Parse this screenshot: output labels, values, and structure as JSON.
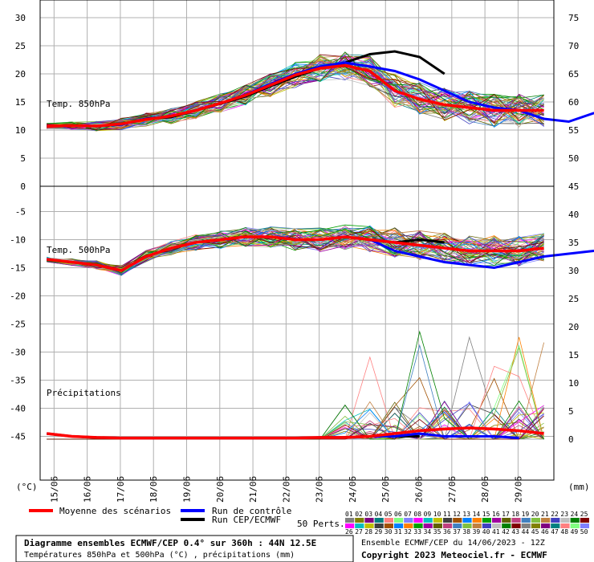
{
  "chart_data": {
    "type": "line",
    "dates": [
      "15/06",
      "16/06",
      "17/06",
      "18/06",
      "19/06",
      "20/06",
      "21/06",
      "22/06",
      "23/06",
      "24/06",
      "25/06",
      "26/06",
      "27/06",
      "28/06",
      "29/06"
    ],
    "left_axis": {
      "unit": "(°C)",
      "t850_ticks": [
        30,
        25,
        20,
        15,
        10,
        5,
        0
      ],
      "t500_ticks": [
        -5,
        -10,
        -15,
        -20,
        -25,
        -30,
        -35,
        -40,
        -45
      ]
    },
    "right_axis": {
      "unit": "(mm)",
      "t850_ticks": [
        75,
        70,
        65,
        60,
        55,
        50
      ],
      "t500_ticks": [
        45,
        40,
        35,
        30,
        25,
        20,
        15,
        10,
        5,
        0
      ]
    },
    "panels": {
      "t850": {
        "label": "Temp. 850hPa",
        "ylim": [
          0,
          33
        ]
      },
      "t500": {
        "label": "Temp. 500hPa",
        "ylim": [
          -53,
          -0.5
        ]
      },
      "precip": {
        "label": "Précipitations",
        "ylim": [
          0,
          45
        ]
      }
    },
    "x_days": [
      0,
      1,
      2,
      3,
      4,
      5,
      6,
      7,
      8,
      9,
      10,
      11,
      12,
      13,
      14,
      15
    ],
    "series": [
      {
        "name": "Moyenne des scénarios",
        "color": "#ff0000",
        "t850": [
          10.7,
          10.8,
          10.7,
          11.1,
          11.9,
          12.5,
          13.5,
          14.8,
          16.2,
          18.0,
          19.8,
          21.0,
          21.5,
          20.5,
          17.0,
          15.5,
          14.5,
          14.0,
          13.5,
          13.5,
          13.5
        ],
        "t500": [
          -13.5,
          -14.0,
          -14.5,
          -15.5,
          -13.0,
          -11.5,
          -10.5,
          -10.0,
          -9.5,
          -9.5,
          -10.0,
          -10.0,
          -9.5,
          -10.0,
          -10.5,
          -11.0,
          -11.5,
          -12.0,
          -12.0,
          -12.0,
          -11.5
        ],
        "precip": [
          1.0,
          0.5,
          0.3,
          0.2,
          0.2,
          0.2,
          0.2,
          0.2,
          0.2,
          0.2,
          0.2,
          0.3,
          0.3,
          0.5,
          1.0,
          1.5,
          1.8,
          2.0,
          1.8,
          1.5,
          1.0
        ]
      },
      {
        "name": "Run de contrôle",
        "color": "#0000ff",
        "t850": [
          10.7,
          10.8,
          10.7,
          11.0,
          12.0,
          12.5,
          13.5,
          14.8,
          16.3,
          18.2,
          20.0,
          21.3,
          22.0,
          21.3,
          20.5,
          19.0,
          17.0,
          15.0,
          14.0,
          13.5,
          12.0,
          11.5,
          13.0,
          14.0
        ],
        "t500": [
          -13.5,
          -14.0,
          -14.5,
          -15.5,
          -13.0,
          -11.5,
          -10.5,
          -10.0,
          -9.5,
          -9.5,
          -10.0,
          -10.0,
          -9.5,
          -10.0,
          -12.0,
          -13.0,
          -14.0,
          -14.5,
          -15.0,
          -14.0,
          -13.0,
          -12.5,
          -12.0,
          -11.5
        ],
        "precip": [
          1.0,
          0.5,
          0.3,
          0.2,
          0.2,
          0.2,
          0.2,
          0.2,
          0.2,
          0.2,
          0.2,
          0.3,
          0.3,
          0.5,
          0.5,
          1.0,
          0.5,
          0.5,
          0.5,
          0.2
        ]
      },
      {
        "name": "Run CEP/ECMWF",
        "color": "#000000",
        "t850": [
          10.7,
          10.8,
          10.7,
          11.0,
          12.0,
          12.3,
          13.5,
          14.7,
          16.0,
          17.8,
          19.5,
          21.0,
          22.0,
          23.5,
          24.0,
          23.0,
          20.0
        ],
        "t500": [
          -13.5,
          -14.0,
          -14.5,
          -15.5,
          -13.0,
          -11.5,
          -10.5,
          -10.0,
          -9.5,
          -9.5,
          -10.0,
          -10.0,
          -9.5,
          -10.0,
          -10.5,
          -10.0,
          -10.5
        ],
        "precip": [
          1.0,
          0.5,
          0.3,
          0.2,
          0.2,
          0.2,
          0.2,
          0.2,
          0.2,
          0.2,
          0.2,
          0.3,
          0.3,
          0.5,
          0.5,
          0.5
        ]
      }
    ],
    "legend": {
      "mean": "Moyenne des scénarios",
      "control": "Run de contrôle",
      "cep": "Run CEP/ECMWF",
      "perts_label": "50 Perts.",
      "perts_top": [
        "01",
        "02",
        "03",
        "04",
        "05",
        "06",
        "07",
        "08",
        "09",
        "10",
        "11",
        "12",
        "13",
        "14",
        "15",
        "16",
        "17",
        "18",
        "19",
        "20",
        "21",
        "22",
        "23",
        "24",
        "25"
      ],
      "perts_bottom": [
        "26",
        "27",
        "28",
        "29",
        "30",
        "31",
        "32",
        "33",
        "34",
        "35",
        "36",
        "37",
        "38",
        "39",
        "40",
        "41",
        "42",
        "43",
        "44",
        "45",
        "46",
        "47",
        "48",
        "49",
        "50"
      ]
    }
  },
  "footer": {
    "title": "Diagramme ensembles ECMWF/CEP 0.4° sur 360h : 44N 12.5E",
    "subtitle": "Températures 850hPa et 500hPa (°C) , précipitations (mm)",
    "run_info": "Ensemble ECMWF/CEP du 14/06/2023 - 12Z",
    "copyright": "Copyright 2023 Meteociel.fr - ECMWF"
  },
  "colors": {
    "grid": "#b0b0b0",
    "background": "#ffffff"
  }
}
